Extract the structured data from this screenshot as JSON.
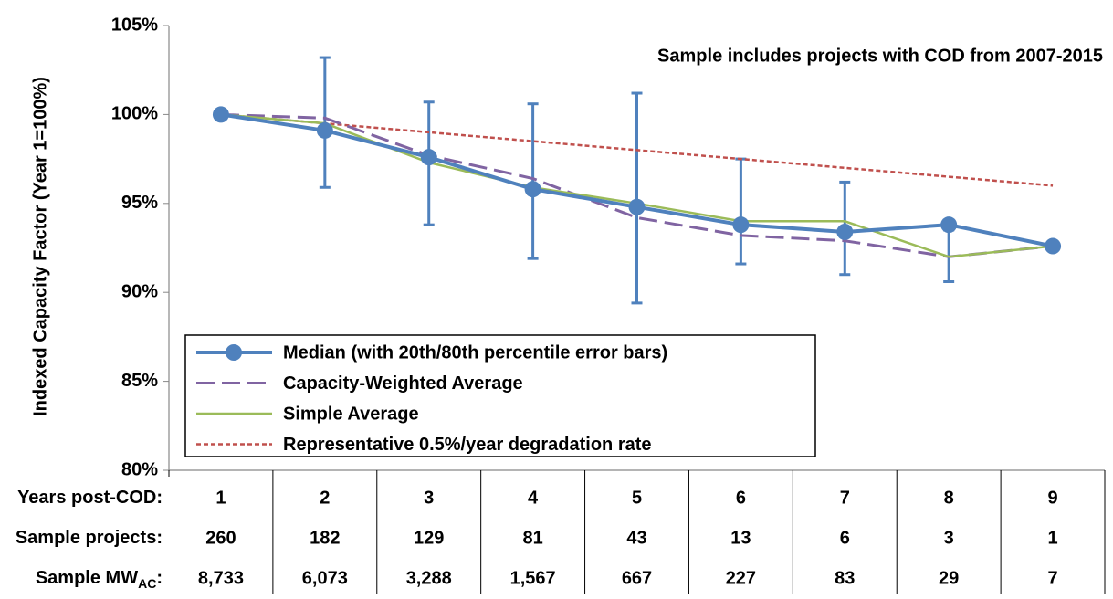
{
  "chart_data": {
    "type": "line",
    "y_label": "Indexed Capacity Factor (Year 1=100%)",
    "annotation": "Sample includes projects with COD from 2007-2015",
    "categories": [
      1,
      2,
      3,
      4,
      5,
      6,
      7,
      8,
      9
    ],
    "ylim": [
      80,
      105
    ],
    "yticks": [
      {
        "value": 80,
        "label": "80%"
      },
      {
        "value": 85,
        "label": "85%"
      },
      {
        "value": 90,
        "label": "90%"
      },
      {
        "value": 95,
        "label": "95%"
      },
      {
        "value": 100,
        "label": "100%"
      },
      {
        "value": 105,
        "label": "105%"
      }
    ],
    "series": [
      {
        "name": "Median (with 20th/80th percentile error bars)",
        "color": "#4f81bd",
        "style": "solid-marker",
        "values": [
          100,
          99.1,
          97.6,
          95.8,
          94.8,
          93.8,
          93.4,
          93.8,
          92.6
        ],
        "upper": [
          null,
          103.2,
          100.7,
          100.6,
          101.2,
          97.5,
          96.2,
          93.5,
          null
        ],
        "lower": [
          null,
          95.9,
          93.8,
          91.9,
          89.4,
          91.6,
          91.0,
          90.6,
          null
        ]
      },
      {
        "name": "Capacity-Weighted Average",
        "color": "#8064a2",
        "style": "dashed",
        "values": [
          100,
          99.8,
          97.7,
          96.4,
          94.2,
          93.2,
          92.9,
          92.0,
          92.6
        ]
      },
      {
        "name": "Simple Average",
        "color": "#9bbb59",
        "style": "thin",
        "values": [
          100,
          99.5,
          97.3,
          95.9,
          95.0,
          94.0,
          94.0,
          92.0,
          92.6
        ]
      },
      {
        "name": "Representative 0.5%/year degradation rate",
        "color": "#c0504d",
        "style": "dotted",
        "values": [
          100,
          99.5,
          99,
          98.5,
          98,
          97.5,
          97,
          96.5,
          96
        ]
      }
    ],
    "table": {
      "row_labels": [
        {
          "text": "Years post-COD:"
        },
        {
          "text": "Sample projects:"
        },
        {
          "text": "Sample MW",
          "sub": "AC",
          "suffix": ":"
        }
      ],
      "sample_projects": [
        260,
        182,
        129,
        81,
        43,
        13,
        6,
        3,
        1
      ],
      "sample_mw": [
        "8,733",
        "6,073",
        "3,288",
        "1,567",
        "667",
        "227",
        "83",
        "29",
        "7"
      ]
    }
  }
}
